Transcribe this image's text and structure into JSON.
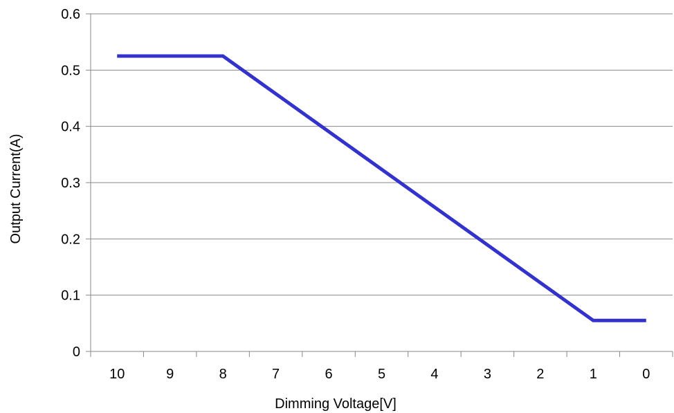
{
  "chart_data": {
    "type": "line",
    "xlabel": "Dimming Voltage[V]",
    "ylabel": "Output Current(A)",
    "x_categories": [
      "10",
      "9",
      "8",
      "7",
      "6",
      "5",
      "4",
      "3",
      "2",
      "1",
      "0"
    ],
    "xlim": [
      10.5,
      -0.5
    ],
    "ylim": [
      0,
      0.6
    ],
    "y_ticks": [
      "0",
      "0.1",
      "0.2",
      "0.3",
      "0.4",
      "0.5",
      "0.6"
    ],
    "y_tick_values": [
      0,
      0.1,
      0.2,
      0.3,
      0.4,
      0.5,
      0.6
    ],
    "grid": "horizontal",
    "legend": "none",
    "series": [
      {
        "color": "#3333cc",
        "points": [
          {
            "x": 10,
            "y": 0.525
          },
          {
            "x": 8,
            "y": 0.525
          },
          {
            "x": 1,
            "y": 0.055
          },
          {
            "x": 0,
            "y": 0.055
          }
        ]
      }
    ]
  },
  "colors": {
    "grid": "#878787",
    "axis": "#878787",
    "line": "#3333cc"
  }
}
